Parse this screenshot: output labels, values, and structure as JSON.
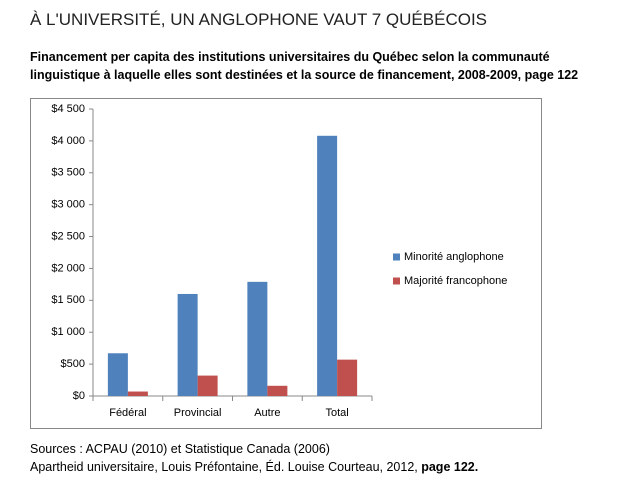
{
  "chart_data": {
    "type": "bar",
    "title": "À L'UNIVERSITÉ, UN ANGLOPHONE VAUT 7 QUÉBÉCOIS",
    "subtitle": [
      "Financement per capita des institutions universitaires du Québec selon la communauté",
      "linguistique à laquelle elles sont destinées et la source de financement, 2008-2009,  page 122"
    ],
    "categories": [
      "Fédéral",
      "Provincial",
      "Autre",
      "Total"
    ],
    "series": [
      {
        "name": "Minorité anglophone",
        "color": "#4f81bd",
        "values": [
          670,
          1600,
          1790,
          4080
        ]
      },
      {
        "name": "Majorité francophone",
        "color": "#c0504d",
        "values": [
          70,
          320,
          160,
          570
        ]
      }
    ],
    "ylim": [
      0,
      4500
    ],
    "yticks": [
      {
        "value": 0,
        "label": "$0"
      },
      {
        "value": 500,
        "label": "$500"
      },
      {
        "value": 1000,
        "label": "$1 000"
      },
      {
        "value": 1500,
        "label": "$1 500"
      },
      {
        "value": 2000,
        "label": "$2 000"
      },
      {
        "value": 2500,
        "label": "$2 500"
      },
      {
        "value": 3000,
        "label": "$3 000"
      },
      {
        "value": 3500,
        "label": "$3 500"
      },
      {
        "value": 4000,
        "label": "$4 000"
      },
      {
        "value": 4500,
        "label": "$4 500"
      }
    ],
    "legend": "right",
    "sources": [
      "Sources : ACPAU (2010) et Statistique Canada (2006)",
      "Apartheid universitaire, Louis Préfontaine, Éd. Louise Courteau, 2012, ",
      "page 122."
    ]
  }
}
